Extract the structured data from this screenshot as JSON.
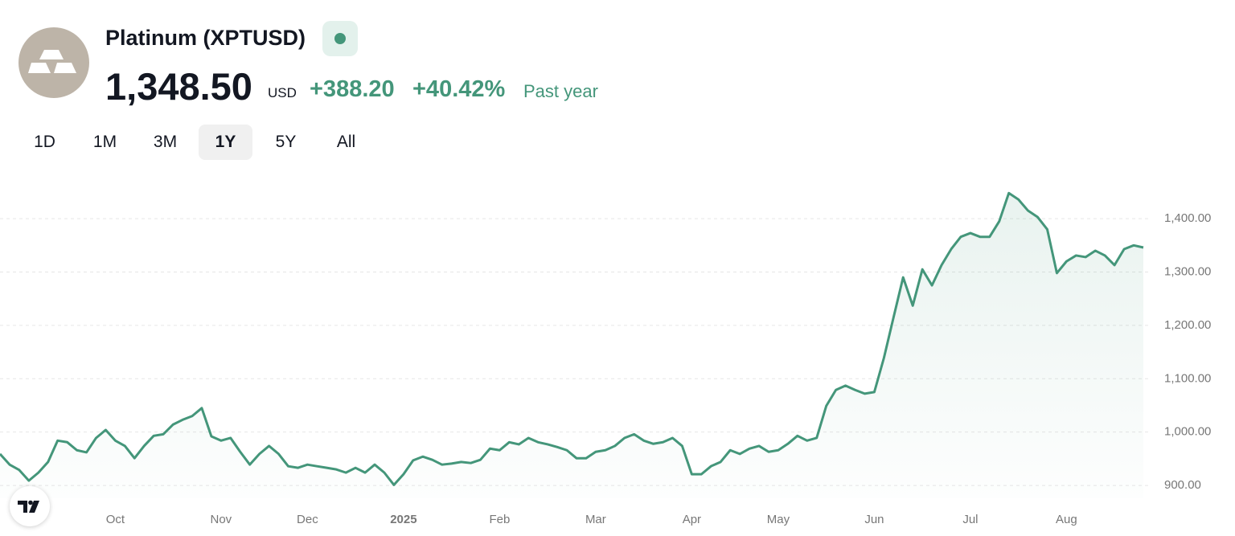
{
  "header": {
    "title": "Platinum (XPTUSD)",
    "price": "1,348.50",
    "currency": "USD",
    "change": "+388.20",
    "change_percent": "+40.42%",
    "period": "Past year"
  },
  "range_buttons": [
    "1D",
    "1M",
    "3M",
    "1Y",
    "5Y",
    "All"
  ],
  "active_range": 3,
  "chart_data": {
    "type": "line",
    "color": "#44967a",
    "grid": true,
    "categories": [
      null,
      null,
      null,
      null,
      null,
      null,
      null,
      null,
      null,
      null,
      null,
      null,
      "Oct",
      null,
      null,
      null,
      null,
      null,
      null,
      null,
      null,
      null,
      null,
      "Nov",
      null,
      null,
      null,
      null,
      null,
      null,
      null,
      null,
      "Dec",
      null,
      null,
      null,
      null,
      null,
      null,
      null,
      null,
      null,
      "2025",
      null,
      null,
      null,
      null,
      null,
      null,
      null,
      null,
      null,
      "Feb",
      null,
      null,
      null,
      null,
      null,
      null,
      null,
      null,
      null,
      "Mar",
      null,
      null,
      null,
      null,
      null,
      null,
      null,
      null,
      null,
      "Apr",
      null,
      null,
      null,
      null,
      null,
      null,
      null,
      null,
      "May",
      null,
      null,
      null,
      null,
      null,
      null,
      null,
      null,
      null,
      "Jun",
      null,
      null,
      null,
      null,
      null,
      null,
      null,
      null,
      null,
      "Jul",
      null,
      null,
      null,
      null,
      null,
      null,
      null,
      null,
      null,
      "Aug",
      null,
      null,
      null,
      null,
      null,
      null,
      null,
      null
    ],
    "values": [
      959,
      939,
      929,
      909,
      924,
      944,
      984,
      981,
      966,
      962,
      989,
      1004,
      984,
      974,
      951,
      974,
      993,
      996,
      1014,
      1023,
      1030,
      1045,
      992,
      984,
      989,
      963,
      939,
      959,
      974,
      959,
      936,
      933,
      939,
      936,
      933,
      930,
      924,
      933,
      924,
      939,
      924,
      901,
      921,
      947,
      954,
      948,
      939,
      941,
      944,
      942,
      948,
      969,
      966,
      981,
      977,
      989,
      981,
      977,
      972,
      966,
      951,
      951,
      963,
      966,
      974,
      989,
      996,
      984,
      978,
      981,
      989,
      974,
      921,
      921,
      936,
      944,
      966,
      959,
      969,
      974,
      963,
      966,
      978,
      993,
      984,
      989,
      1049,
      1079,
      1087,
      1079,
      1072,
      1075,
      1139,
      1215,
      1290,
      1237,
      1305,
      1275,
      1313,
      1343,
      1366,
      1373,
      1366,
      1366,
      1395,
      1448,
      1436,
      1415,
      1403,
      1380,
      1298,
      1320,
      1331,
      1328,
      1340,
      1331,
      1313,
      1343,
      1350,
      1346
    ],
    "ylim": [
      876,
      1471
    ],
    "yticks": [
      {
        "value": 900,
        "label": "900.00"
      },
      {
        "value": 1000,
        "label": "1,000.00"
      },
      {
        "value": 1100,
        "label": "1,100.00"
      },
      {
        "value": 1200,
        "label": "1,200.00"
      },
      {
        "value": 1300,
        "label": "1,300.00"
      },
      {
        "value": 1400,
        "label": "1,400.00"
      }
    ]
  }
}
